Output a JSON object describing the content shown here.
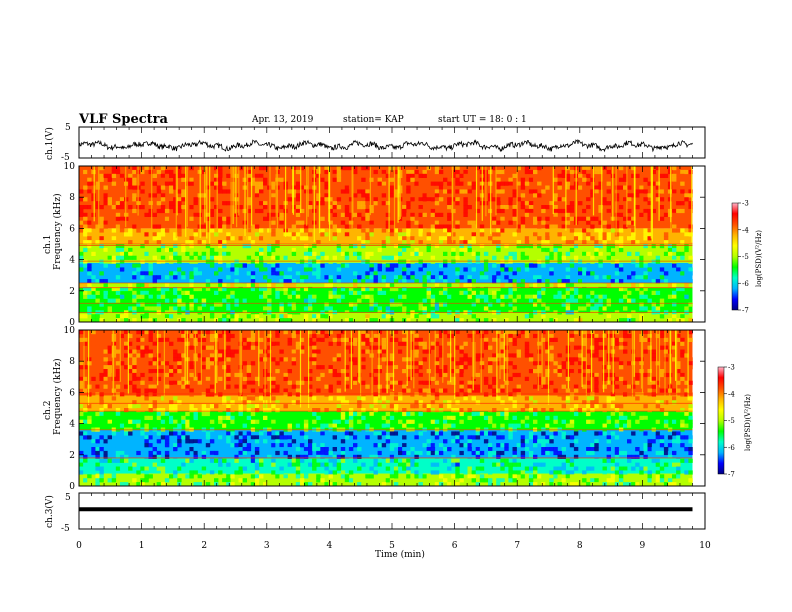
{
  "header": {
    "title": "VLF Spectra",
    "date": "Apr. 13, 2019",
    "station": "station= KAP",
    "start": "start  UT =   18: 0  : 1"
  },
  "colors": {
    "scale": [
      "#000080",
      "#0000ff",
      "#00b4ff",
      "#00ffc8",
      "#00ff00",
      "#b4ff00",
      "#ffff00",
      "#ffb400",
      "#ff5000",
      "#ff0000",
      "#ffb4c8"
    ]
  },
  "chart_data": [
    {
      "type": "line",
      "panel": "ch1",
      "ylabel": "ch.1(V)",
      "ylim": [
        -5,
        5
      ],
      "yticks": [
        "5",
        "-5"
      ],
      "x_range_min": [
        0,
        9.8
      ],
      "note_values": "waveform approximated as oscillating around ~ -1 V with amplitude ~1.5 V",
      "baseline": -1.0,
      "amplitude": 1.5
    },
    {
      "type": "heatmap",
      "panel": "ch1-spectrogram",
      "ylabel_line1": "ch.1",
      "ylabel_line2": "Frequency (kHz)",
      "ylim": [
        0,
        10
      ],
      "yticks": [
        "0",
        "2",
        "4",
        "6",
        "8",
        "10"
      ],
      "xlim": [
        0,
        10
      ],
      "data_x_max": 9.8,
      "colorbar": {
        "label": "log(PSD)(V²/Hz)",
        "range": [
          -7,
          -3
        ],
        "ticks": [
          "-3",
          "-4",
          "-5",
          "-6",
          "-7"
        ]
      },
      "bands": [
        {
          "from": 0.0,
          "to": 0.6,
          "level": -4.8
        },
        {
          "from": 0.6,
          "to": 2.2,
          "level": -5.2
        },
        {
          "from": 2.2,
          "to": 2.5,
          "level": -4.6
        },
        {
          "from": 2.5,
          "to": 3.8,
          "level": -5.9
        },
        {
          "from": 3.8,
          "to": 5.0,
          "level": -5.0
        },
        {
          "from": 5.0,
          "to": 6.0,
          "level": -3.9
        },
        {
          "from": 6.0,
          "to": 10.0,
          "level": -3.3
        }
      ],
      "lines_khz": [
        0.6,
        1.2,
        2.2,
        2.5,
        3.9,
        4.9,
        5.0
      ]
    },
    {
      "type": "heatmap",
      "panel": "ch2-spectrogram",
      "ylabel_line1": "ch.2",
      "ylabel_line2": "Frequency (kHz)",
      "ylim": [
        0,
        10
      ],
      "yticks": [
        "0",
        "2",
        "4",
        "6",
        "8",
        "10"
      ],
      "xlim": [
        0,
        10
      ],
      "data_x_max": 9.8,
      "colorbar": {
        "label": "log(PSD)(V²/Hz)",
        "range": [
          -7,
          -3
        ],
        "ticks": [
          "-3",
          "-4",
          "-5",
          "-6",
          "-7"
        ]
      },
      "bands": [
        {
          "from": 0.0,
          "to": 0.8,
          "level": -5.0
        },
        {
          "from": 0.8,
          "to": 1.8,
          "level": -5.6
        },
        {
          "from": 1.8,
          "to": 3.6,
          "level": -6.3
        },
        {
          "from": 3.6,
          "to": 4.8,
          "level": -5.1
        },
        {
          "from": 4.8,
          "to": 5.8,
          "level": -4.0
        },
        {
          "from": 5.8,
          "to": 10.0,
          "level": -3.3
        }
      ],
      "lines_khz": [
        1.8,
        3.6,
        4.8,
        5.3,
        5.9
      ]
    },
    {
      "type": "line",
      "panel": "ch3",
      "ylabel": "ch.3(V)",
      "ylim": [
        -5,
        5
      ],
      "yticks": [
        "5",
        "-5"
      ],
      "x_range_min": [
        0,
        9.8
      ],
      "baseline": 0.5,
      "amplitude": 0.0,
      "xlabel": "Time  (min)",
      "xlim": [
        0,
        10
      ],
      "xticks": [
        "0",
        "1",
        "2",
        "3",
        "4",
        "5",
        "6",
        "7",
        "8",
        "9",
        "10"
      ]
    }
  ]
}
